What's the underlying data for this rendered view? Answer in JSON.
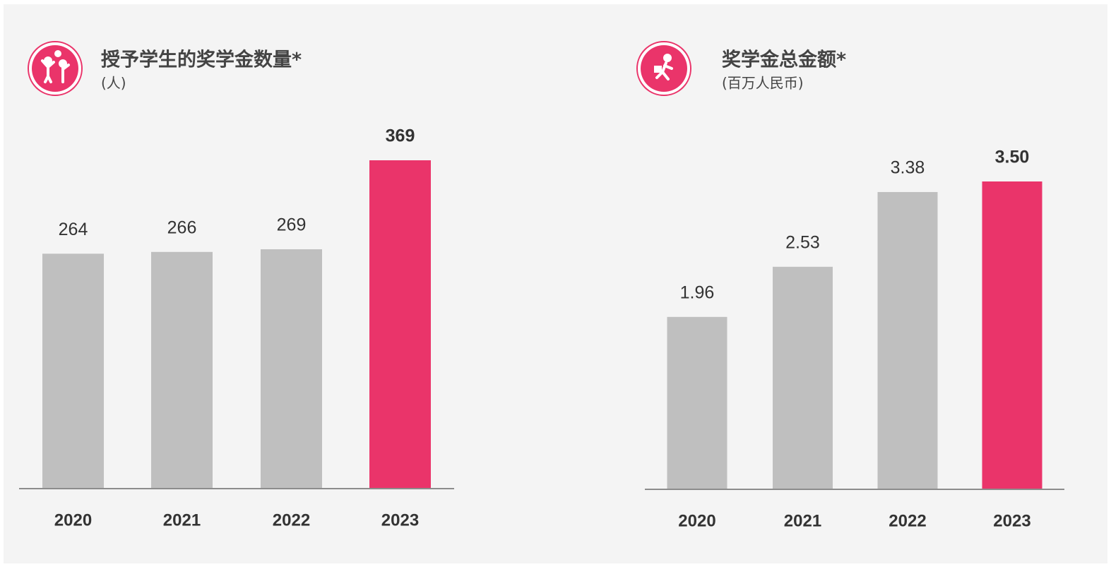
{
  "chart_data": [
    {
      "type": "bar",
      "title": "授予学生的奖学金数量*",
      "subtitle": "(人)",
      "categories": [
        "2020",
        "2021",
        "2022",
        "2023"
      ],
      "values": [
        264,
        266,
        269,
        369
      ],
      "colors": [
        "#bfbfbf",
        "#bfbfbf",
        "#bfbfbf",
        "#ea346a"
      ]
    },
    {
      "type": "bar",
      "title": "奖学金总金额*",
      "subtitle": "(百万人民币)",
      "categories": [
        "2020",
        "2021",
        "2022",
        "2023"
      ],
      "values": [
        1.96,
        2.53,
        3.38,
        3.5
      ],
      "value_labels": [
        "1.96",
        "2.53",
        "3.38",
        "3.50"
      ],
      "colors": [
        "#bfbfbf",
        "#bfbfbf",
        "#bfbfbf",
        "#ea346a"
      ]
    }
  ]
}
